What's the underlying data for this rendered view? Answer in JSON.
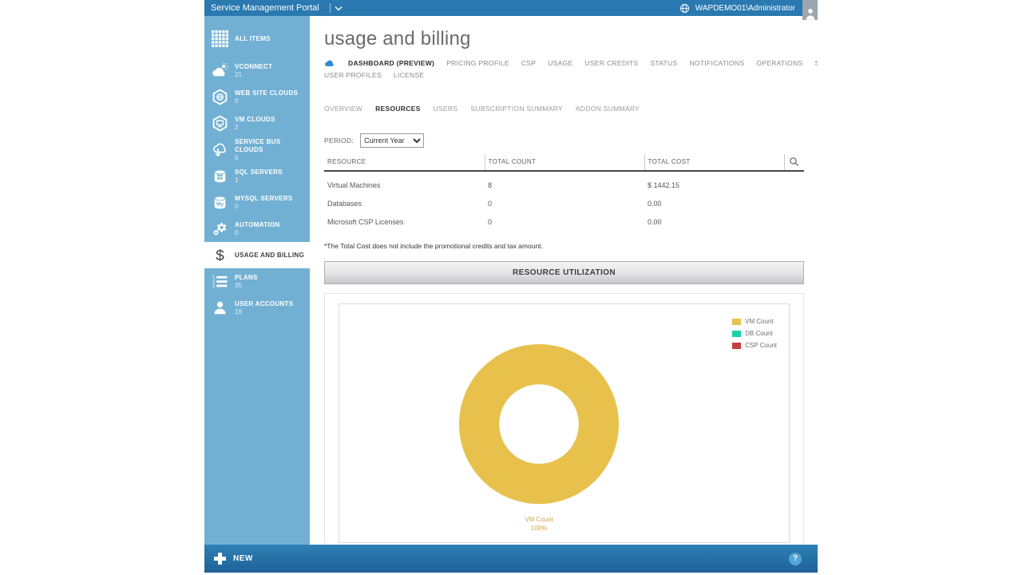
{
  "topbar": {
    "title": "Service Management Portal",
    "user": "WAPDEMO01\\Administrator"
  },
  "sidebar": {
    "items": [
      {
        "label": "ALL ITEMS",
        "count": "",
        "icon": "grid",
        "selected": false
      },
      {
        "label": "VCONNECT",
        "count": "21",
        "icon": "cloud-sun",
        "selected": false
      },
      {
        "label": "WEB SITE CLOUDS",
        "count": "0",
        "icon": "globe-hex",
        "selected": false
      },
      {
        "label": "VM CLOUDS",
        "count": "2",
        "icon": "monitor-hex",
        "selected": false
      },
      {
        "label": "SERVICE BUS CLOUDS",
        "count": "0",
        "icon": "cloud-arrow",
        "selected": false
      },
      {
        "label": "SQL SERVERS",
        "count": "1",
        "icon": "database",
        "selected": false
      },
      {
        "label": "MYSQL SERVERS",
        "count": "0",
        "icon": "database-my",
        "selected": false
      },
      {
        "label": "AUTOMATION",
        "count": "0",
        "icon": "gears",
        "selected": false
      },
      {
        "label": "USAGE AND BILLING",
        "count": "",
        "icon": "dollar",
        "selected": true
      },
      {
        "label": "PLANS",
        "count": "35",
        "icon": "ordered-list",
        "selected": false
      },
      {
        "label": "USER ACCOUNTS",
        "count": "19",
        "icon": "person",
        "selected": false
      }
    ]
  },
  "header": {
    "title": "usage and billing"
  },
  "tabs": {
    "rows": [
      [
        {
          "label": "DASHBOARD (PREVIEW)",
          "active": true
        },
        {
          "label": "PRICING PROFILE",
          "active": false
        },
        {
          "label": "CSP",
          "active": false
        },
        {
          "label": "USAGE",
          "active": false
        },
        {
          "label": "USER CREDITS",
          "active": false
        },
        {
          "label": "STATUS",
          "active": false
        },
        {
          "label": "NOTIFICATIONS",
          "active": false
        },
        {
          "label": "OPERATIONS",
          "active": false
        },
        {
          "label": "SETTINGS",
          "active": false
        }
      ],
      [
        {
          "label": "USER PROFILES",
          "active": false
        },
        {
          "label": "LICENSE",
          "active": false
        }
      ]
    ]
  },
  "subtabs": {
    "items": [
      {
        "label": "OVERVIEW",
        "active": false
      },
      {
        "label": "RESOURCES",
        "active": true
      },
      {
        "label": "USERS",
        "active": false
      },
      {
        "label": "SUBSCRIPTION SUMMARY",
        "active": false
      },
      {
        "label": "ADDON SUMMARY",
        "active": false
      }
    ]
  },
  "period": {
    "label": "PERIOD:",
    "value": "Current Year"
  },
  "table": {
    "columns": [
      "RESOURCE",
      "TOTAL COUNT",
      "TOTAL COST"
    ],
    "rows": [
      [
        "Virtual Machines",
        "8",
        "$ 1442.15"
      ],
      [
        "Databases",
        "0",
        "0.00"
      ],
      [
        "Microsoft CSP Licenses",
        "0",
        "0.00"
      ]
    ]
  },
  "footnote": "*The Total Cost does not include the promotional credits and tax amount.",
  "section": {
    "title": "RESOURCE UTILIZATION"
  },
  "chart_data": {
    "type": "pie",
    "donut": true,
    "title": "RESOURCE UTILIZATION",
    "series": [
      {
        "name": "VM Count",
        "value": 100,
        "color": "#E8C14C"
      },
      {
        "name": "DB Count",
        "value": 0,
        "color": "#17D3A6"
      },
      {
        "name": "CSP Count",
        "value": 0,
        "color": "#C0413F"
      }
    ],
    "unit": "percent",
    "slice_label": {
      "text": "VM Count",
      "pct": "100%"
    },
    "legend_position": "top-right"
  },
  "bottombar": {
    "new_label": "NEW",
    "help_label": "?"
  },
  "colors": {
    "topbar_blue": "#2A79B0",
    "sidebar_blue": "#72B0D3",
    "bottombar_blue": "#2E80B6",
    "vm_gold": "#E8C14C",
    "db_green": "#17D3A6",
    "csp_red": "#C0413F"
  }
}
